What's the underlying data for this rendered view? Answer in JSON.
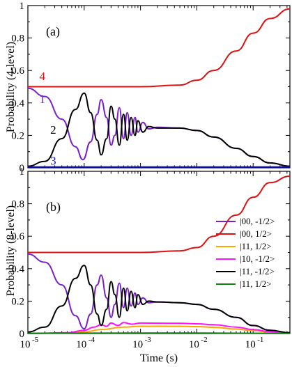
{
  "chart_data": [
    {
      "type": "line",
      "panel_label": "(a)",
      "ylabel": "Probability (4-level)",
      "xscale": "log",
      "xlim": [
        1e-05,
        0.45
      ],
      "ylim": [
        0,
        1
      ],
      "yticks": [
        0,
        0.2,
        0.4,
        0.6,
        0.8,
        1
      ],
      "ytick_labels": [
        "0",
        "0.2",
        "0.4",
        "0.6",
        "0.8",
        "1"
      ],
      "curve_labels": [
        {
          "text": "4",
          "color": "#e01010",
          "at_x": 1.6e-05,
          "at_y": 0.54
        },
        {
          "text": "1",
          "color": "#7a20c8",
          "at_x": 1.6e-05,
          "at_y": 0.4
        },
        {
          "text": "2",
          "color": "#000000",
          "at_x": 2.5e-05,
          "at_y": 0.21
        },
        {
          "text": "3",
          "color": "#1010d0",
          "at_x": 2.5e-05,
          "at_y": 0.02
        }
      ],
      "series": [
        {
          "color": "#e01010",
          "values": [
            [
              1e-05,
              0.5
            ],
            [
              0.001,
              0.5
            ],
            [
              0.005,
              0.51
            ],
            [
              0.01,
              0.54
            ],
            [
              0.02,
              0.6
            ],
            [
              0.05,
              0.72
            ],
            [
              0.1,
              0.83
            ],
            [
              0.2,
              0.92
            ],
            [
              0.45,
              0.98
            ]
          ]
        },
        {
          "color": "#7a20c8",
          "values": [
            [
              1e-05,
              0.49
            ],
            [
              2e-05,
              0.44
            ],
            [
              4e-05,
              0.3
            ],
            [
              7e-05,
              0.13
            ],
            [
              9.5e-05,
              0.05
            ],
            [
              0.00013,
              0.16
            ],
            [
              0.00017,
              0.33
            ],
            [
              0.0002,
              0.42
            ],
            [
              0.00025,
              0.31
            ],
            [
              0.0003,
              0.14
            ],
            [
              0.00035,
              0.2
            ],
            [
              0.00042,
              0.37
            ],
            [
              0.0005,
              0.18
            ],
            [
              0.00058,
              0.34
            ],
            [
              0.00068,
              0.2
            ],
            [
              0.0008,
              0.31
            ],
            [
              0.0009,
              0.22
            ],
            [
              0.0011,
              0.28
            ],
            [
              0.0014,
              0.24
            ],
            [
              0.002,
              0.25
            ],
            [
              0.005,
              0.245
            ],
            [
              0.01,
              0.23
            ],
            [
              0.02,
              0.19
            ],
            [
              0.05,
              0.12
            ],
            [
              0.1,
              0.07
            ],
            [
              0.2,
              0.03
            ],
            [
              0.45,
              0.01
            ]
          ]
        },
        {
          "color": "#000000",
          "values": [
            [
              1e-05,
              0.01
            ],
            [
              2e-05,
              0.04
            ],
            [
              4e-05,
              0.18
            ],
            [
              7e-05,
              0.36
            ],
            [
              0.0001,
              0.46
            ],
            [
              0.00013,
              0.34
            ],
            [
              0.00017,
              0.17
            ],
            [
              0.0002,
              0.08
            ],
            [
              0.00025,
              0.18
            ],
            [
              0.0003,
              0.38
            ],
            [
              0.00035,
              0.3
            ],
            [
              0.00042,
              0.14
            ],
            [
              0.0005,
              0.33
            ],
            [
              0.00058,
              0.17
            ],
            [
              0.00068,
              0.31
            ],
            [
              0.0008,
              0.2
            ],
            [
              0.0009,
              0.29
            ],
            [
              0.0011,
              0.22
            ],
            [
              0.0014,
              0.255
            ],
            [
              0.002,
              0.245
            ],
            [
              0.005,
              0.245
            ],
            [
              0.01,
              0.23
            ],
            [
              0.02,
              0.19
            ],
            [
              0.05,
              0.12
            ],
            [
              0.1,
              0.07
            ],
            [
              0.2,
              0.03
            ],
            [
              0.45,
              0.01
            ]
          ]
        },
        {
          "color": "#1010d0",
          "values": [
            [
              1e-05,
              0.005
            ],
            [
              0.45,
              0.005
            ]
          ]
        }
      ]
    },
    {
      "type": "line",
      "panel_label": "(b)",
      "ylabel": "Probability (8-level)",
      "xlabel": "Time (s)",
      "xscale": "log",
      "xlim": [
        1e-05,
        0.45
      ],
      "ylim": [
        0,
        1
      ],
      "yticks": [
        0,
        0.2,
        0.4,
        0.6,
        0.8,
        1
      ],
      "ytick_labels": [
        "0",
        "0.2",
        "0.4",
        "0.6",
        "0.8",
        "1"
      ],
      "xticks": [
        1e-05,
        0.0001,
        0.001,
        0.01,
        0.1
      ],
      "xtick_labels": [
        {
          "base": "10",
          "exp": "-5"
        },
        {
          "base": "10",
          "exp": "-4"
        },
        {
          "base": "10",
          "exp": "-3"
        },
        {
          "base": "10",
          "exp": "-2"
        },
        {
          "base": "10",
          "exp": "-1"
        }
      ],
      "legend_position": "right",
      "series": [
        {
          "name": "|00, -1/2>",
          "color": "#7a20c8",
          "values": [
            [
              1e-05,
              0.49
            ],
            [
              2e-05,
              0.44
            ],
            [
              4e-05,
              0.3
            ],
            [
              7e-05,
              0.11
            ],
            [
              0.0001,
              0.03
            ],
            [
              0.00013,
              0.12
            ],
            [
              0.00017,
              0.3
            ],
            [
              0.0002,
              0.36
            ],
            [
              0.00025,
              0.22
            ],
            [
              0.0003,
              0.1
            ],
            [
              0.00035,
              0.18
            ],
            [
              0.00042,
              0.31
            ],
            [
              0.0005,
              0.16
            ],
            [
              0.00058,
              0.28
            ],
            [
              0.00068,
              0.17
            ],
            [
              0.0008,
              0.25
            ],
            [
              0.0009,
              0.18
            ],
            [
              0.0011,
              0.22
            ],
            [
              0.0014,
              0.19
            ],
            [
              0.002,
              0.195
            ],
            [
              0.005,
              0.19
            ],
            [
              0.01,
              0.18
            ],
            [
              0.02,
              0.15
            ],
            [
              0.05,
              0.1
            ],
            [
              0.1,
              0.05
            ],
            [
              0.2,
              0.02
            ],
            [
              0.45,
              0.005
            ]
          ]
        },
        {
          "name": "|00, 1/2>",
          "color": "#e01010",
          "values": [
            [
              1e-05,
              0.5
            ],
            [
              0.001,
              0.5
            ],
            [
              0.005,
              0.51
            ],
            [
              0.01,
              0.53
            ],
            [
              0.02,
              0.6
            ],
            [
              0.05,
              0.73
            ],
            [
              0.1,
              0.84
            ],
            [
              0.2,
              0.93
            ],
            [
              0.45,
              0.97
            ]
          ]
        },
        {
          "name": "|11, 1/2>",
          "color": "#ffa500",
          "values": [
            [
              1e-05,
              0.0
            ],
            [
              5e-05,
              0.003
            ],
            [
              0.0001,
              0.01
            ],
            [
              0.0002,
              0.025
            ],
            [
              0.0005,
              0.04
            ],
            [
              0.001,
              0.045
            ],
            [
              0.005,
              0.045
            ],
            [
              0.01,
              0.043
            ],
            [
              0.02,
              0.038
            ],
            [
              0.05,
              0.028
            ],
            [
              0.1,
              0.018
            ],
            [
              0.2,
              0.008
            ],
            [
              0.45,
              0.003
            ]
          ]
        },
        {
          "name": "|10, -1/2>",
          "color": "#ff10ff",
          "values": [
            [
              1e-05,
              0.0
            ],
            [
              5e-05,
              0.005
            ],
            [
              0.0001,
              0.02
            ],
            [
              0.00015,
              0.04
            ],
            [
              0.0002,
              0.055
            ],
            [
              0.00025,
              0.045
            ],
            [
              0.0003,
              0.065
            ],
            [
              0.0004,
              0.05
            ],
            [
              0.0005,
              0.068
            ],
            [
              0.0007,
              0.058
            ],
            [
              0.001,
              0.065
            ],
            [
              0.005,
              0.063
            ],
            [
              0.01,
              0.06
            ],
            [
              0.02,
              0.055
            ],
            [
              0.05,
              0.04
            ],
            [
              0.1,
              0.025
            ],
            [
              0.2,
              0.012
            ],
            [
              0.45,
              0.004
            ]
          ]
        },
        {
          "name": "|11, -1/2>",
          "color": "#000000",
          "values": [
            [
              1e-05,
              0.01
            ],
            [
              2e-05,
              0.04
            ],
            [
              4e-05,
              0.17
            ],
            [
              7e-05,
              0.34
            ],
            [
              0.0001,
              0.42
            ],
            [
              0.00013,
              0.3
            ],
            [
              0.00017,
              0.12
            ],
            [
              0.0002,
              0.05
            ],
            [
              0.00025,
              0.15
            ],
            [
              0.0003,
              0.32
            ],
            [
              0.00035,
              0.24
            ],
            [
              0.00042,
              0.1
            ],
            [
              0.0005,
              0.28
            ],
            [
              0.00058,
              0.14
            ],
            [
              0.00068,
              0.26
            ],
            [
              0.0008,
              0.16
            ],
            [
              0.0009,
              0.24
            ],
            [
              0.0011,
              0.18
            ],
            [
              0.0014,
              0.2
            ],
            [
              0.002,
              0.195
            ],
            [
              0.005,
              0.19
            ],
            [
              0.01,
              0.18
            ],
            [
              0.02,
              0.15
            ],
            [
              0.05,
              0.1
            ],
            [
              0.1,
              0.05
            ],
            [
              0.2,
              0.02
            ],
            [
              0.45,
              0.005
            ]
          ]
        },
        {
          "name": "|11, 1/2>",
          "color": "#108010",
          "values": [
            [
              1e-05,
              0.002
            ],
            [
              0.001,
              0.003
            ],
            [
              0.01,
              0.003
            ],
            [
              0.45,
              0.001
            ]
          ]
        }
      ]
    }
  ]
}
